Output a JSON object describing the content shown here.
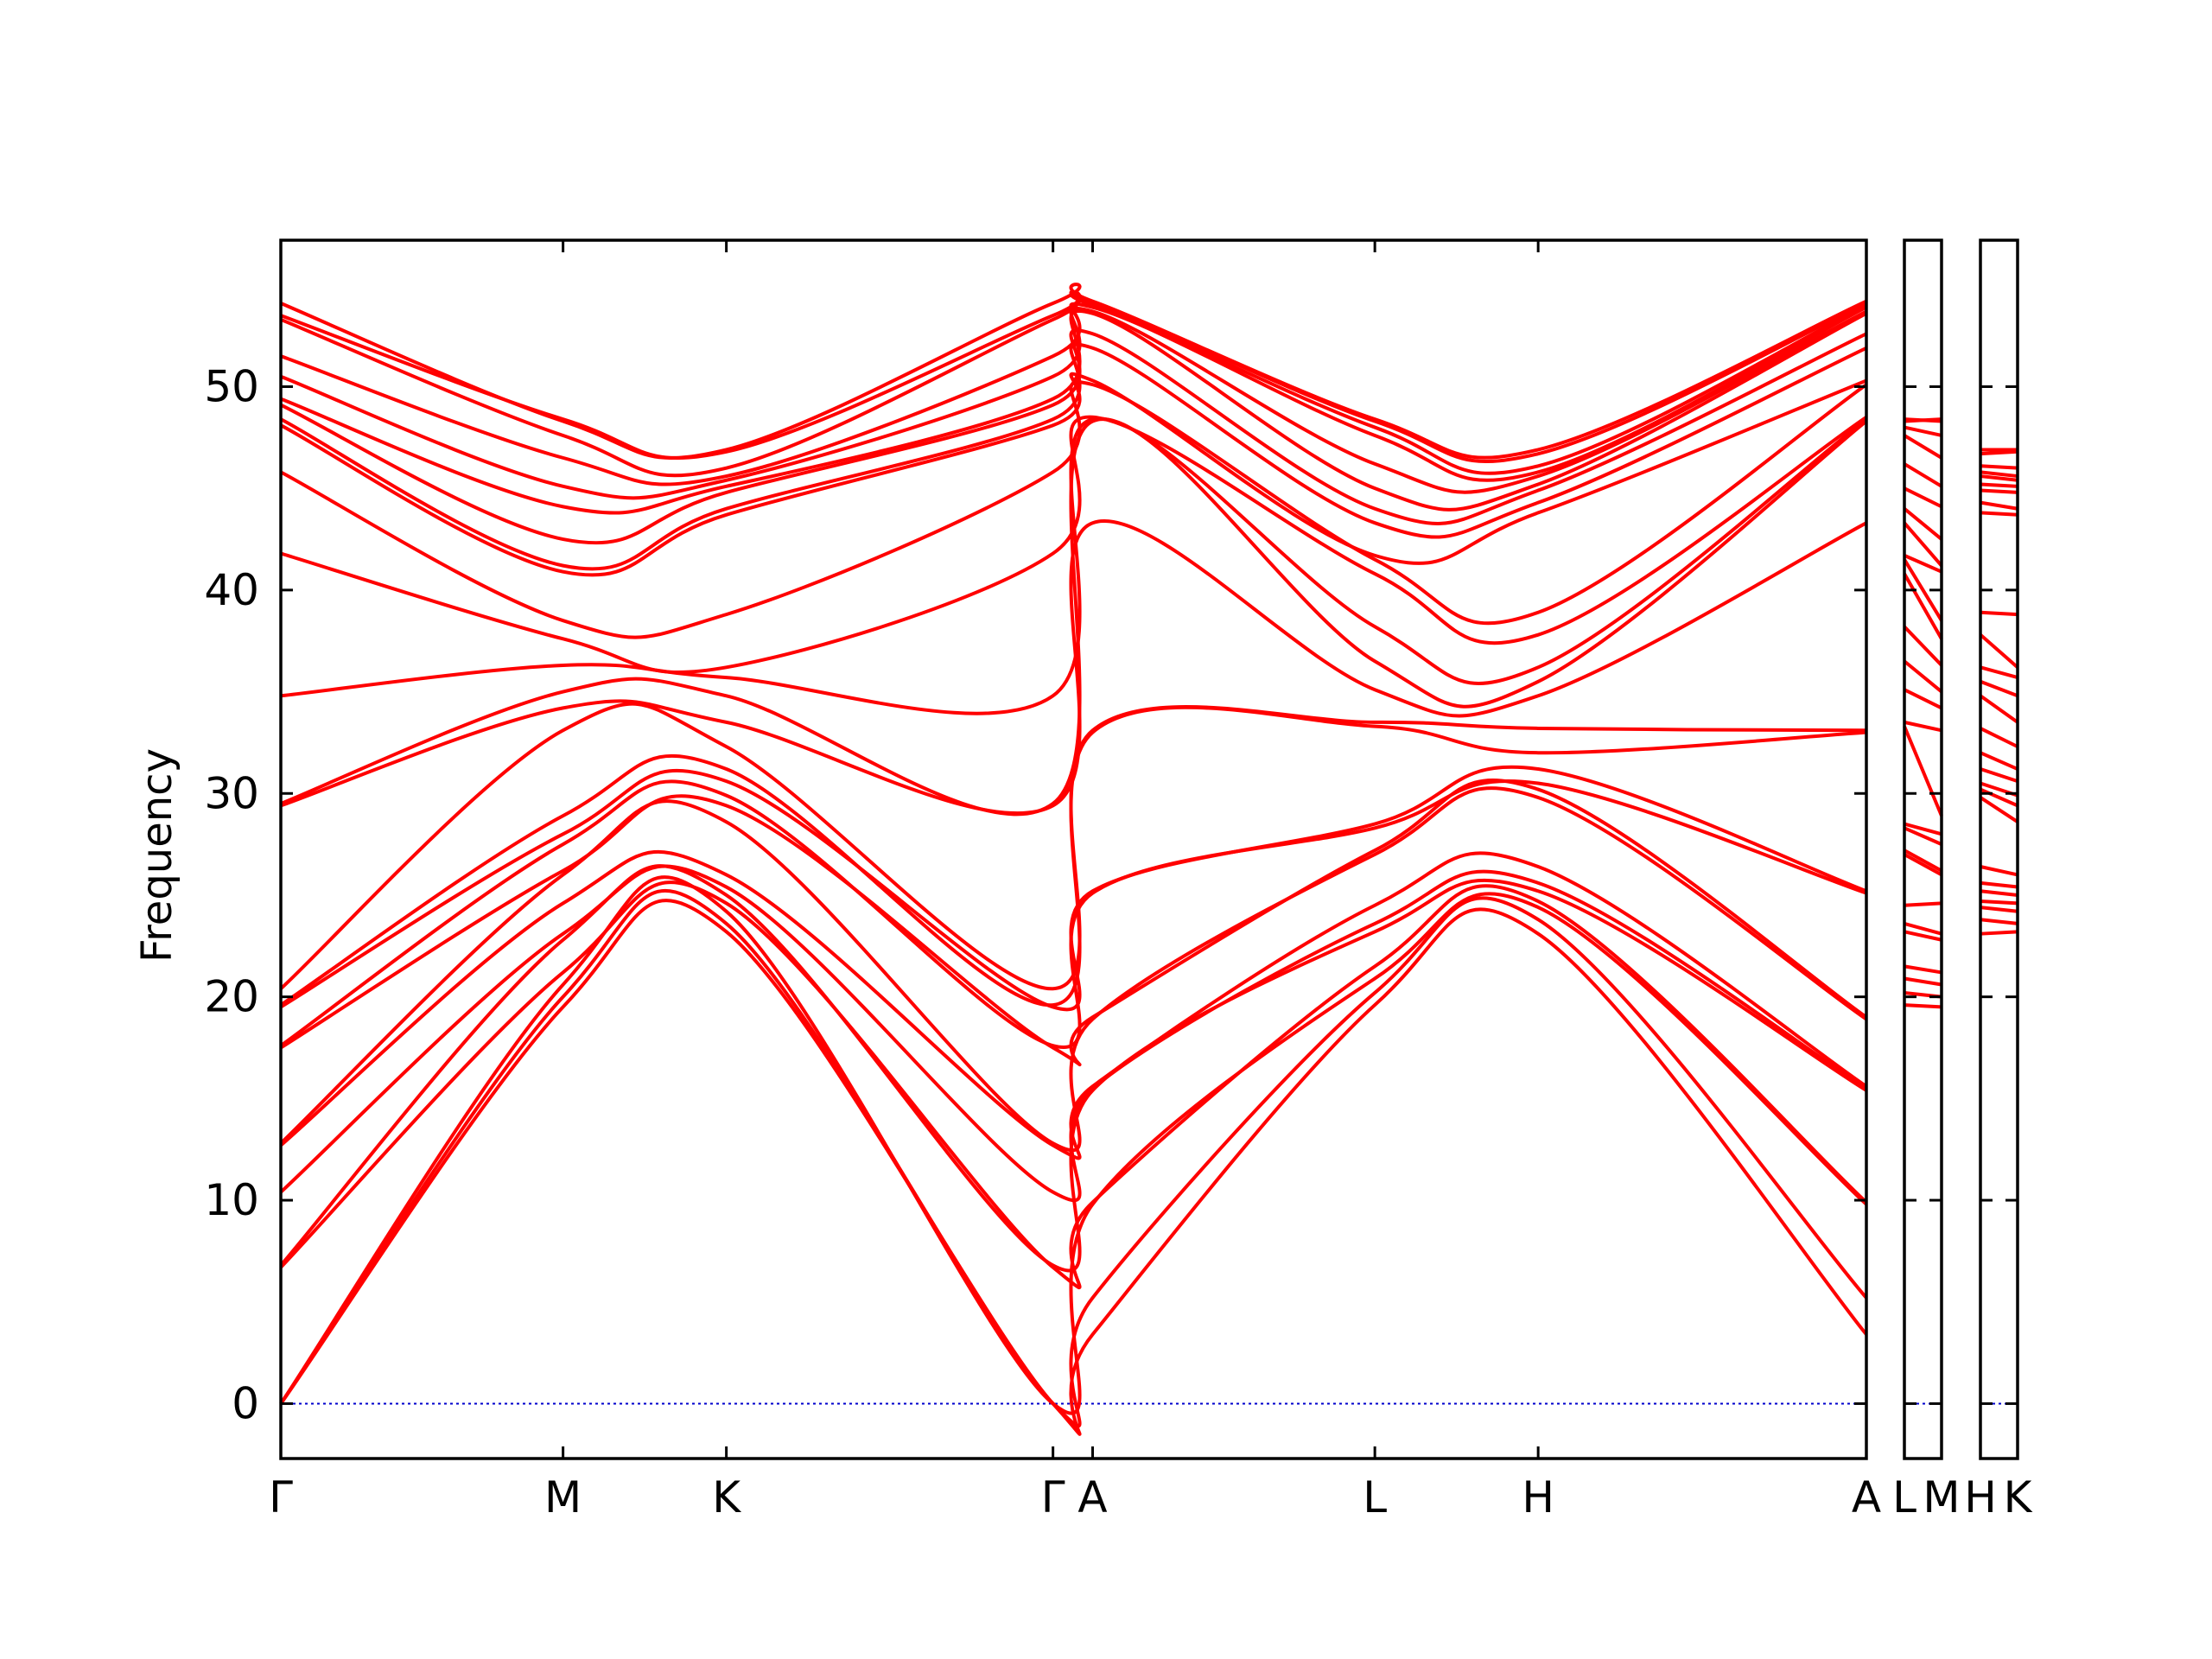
{
  "chart_data": {
    "type": "line",
    "title": "",
    "xlabel": "",
    "ylabel": "Frequency",
    "ylim": [
      -2.7,
      57.2
    ],
    "yticks": [
      0,
      10,
      20,
      30,
      40,
      50
    ],
    "grid": false,
    "line_color": "#ff0000",
    "zero_line_color": "#0000cc",
    "path_labels": [
      {
        "panel": 0,
        "x": 0.0,
        "label": "Γ"
      },
      {
        "panel": 0,
        "x": 0.178,
        "label": "M"
      },
      {
        "panel": 0,
        "x": 0.281,
        "label": "K"
      },
      {
        "panel": 0,
        "x": 0.487,
        "label": "Γ"
      },
      {
        "panel": 0,
        "x": 0.512,
        "label": "A"
      },
      {
        "panel": 0,
        "x": 0.69,
        "label": "L"
      },
      {
        "panel": 0,
        "x": 0.793,
        "label": "H"
      },
      {
        "panel": 0,
        "x": 1.0,
        "label": "A"
      },
      {
        "panel": 1,
        "x": 0.0,
        "label": "L"
      },
      {
        "panel": 1,
        "x": 1.0,
        "label": "M"
      },
      {
        "panel": 2,
        "x": 0.0,
        "label": "H"
      },
      {
        "panel": 2,
        "x": 1.0,
        "label": "K"
      }
    ],
    "panels": [
      {
        "x": [
          0.0,
          0.178,
          0.281,
          0.487,
          0.512,
          0.69,
          0.793,
          1.0
        ],
        "series": [
          {
            "values": [
              0.0,
              19.5,
              23.2,
              0.0,
              3.4,
              19.6,
              23.1,
              3.4
            ]
          },
          {
            "values": [
              0.0,
              20.0,
              23.6,
              0.0,
              5.2,
              20.2,
              23.8,
              5.2
            ]
          },
          {
            "values": [
              0.0,
              20.6,
              24.2,
              0.0,
              9.8,
              20.9,
              24.4,
              9.8
            ]
          },
          {
            "values": [
              6.7,
              21.2,
              24.6,
              6.7,
              9.9,
              21.5,
              24.7,
              9.9
            ]
          },
          {
            "values": [
              6.8,
              22.8,
              25.0,
              6.8,
              15.4,
              23.2,
              25.2,
              15.4
            ]
          },
          {
            "values": [
              10.4,
              23.1,
              25.4,
              10.4,
              15.5,
              23.6,
              25.6,
              15.5
            ]
          },
          {
            "values": [
              12.7,
              24.6,
              26.0,
              12.7,
              15.6,
              24.5,
              26.4,
              15.6
            ]
          },
          {
            "values": [
              12.8,
              26.0,
              28.6,
              12.8,
              18.9,
              27.0,
              29.8,
              18.9
            ]
          },
          {
            "values": [
              17.5,
              26.2,
              29.4,
              17.5,
              19.0,
              27.2,
              30.2,
              19.0
            ]
          },
          {
            "values": [
              17.6,
              27.5,
              29.9,
              17.6,
              25.1,
              28.3,
              30.5,
              25.1
            ]
          },
          {
            "values": [
              19.5,
              28.0,
              30.6,
              19.5,
              25.2,
              28.5,
              31.2,
              25.2
            ]
          },
          {
            "values": [
              19.6,
              28.9,
              31.2,
              19.6,
              33.0,
              33.3,
              32.0,
              33.0
            ]
          },
          {
            "values": [
              20.4,
              33.1,
              32.3,
              20.4,
              33.1,
              33.5,
              33.2,
              33.1
            ]
          },
          {
            "values": [
              29.4,
              34.2,
              33.5,
              29.4,
              43.3,
              35.1,
              34.8,
              43.3
            ]
          },
          {
            "values": [
              29.5,
              35.0,
              34.8,
              29.5,
              48.3,
              36.5,
              35.5,
              48.3
            ]
          },
          {
            "values": [
              34.8,
              36.3,
              35.7,
              34.8,
              48.4,
              38.2,
              36.2,
              48.4
            ]
          },
          {
            "values": [
              41.8,
              37.6,
              36.2,
              41.8,
              48.5,
              40.8,
              37.8,
              48.5
            ]
          },
          {
            "values": [
              45.8,
              38.5,
              38.8,
              45.8,
              50.1,
              41.5,
              38.9,
              50.1
            ]
          },
          {
            "values": [
              48.1,
              40.9,
              43.7,
              48.1,
              50.3,
              41.7,
              43.8,
              50.3
            ]
          },
          {
            "values": [
              48.4,
              41.2,
              44.0,
              48.4,
              51.9,
              43.3,
              44.3,
              51.9
            ]
          },
          {
            "values": [
              49.1,
              42.5,
              44.8,
              49.1,
              52.6,
              44.0,
              44.9,
              52.6
            ]
          },
          {
            "values": [
              49.4,
              44.1,
              45.1,
              49.4,
              53.6,
              45.0,
              45.2,
              53.6
            ]
          },
          {
            "values": [
              50.5,
              45.1,
              45.4,
              50.5,
              53.7,
              46.2,
              45.6,
              53.7
            ]
          },
          {
            "values": [
              51.5,
              46.5,
              45.6,
              51.5,
              53.9,
              47.6,
              45.8,
              53.9
            ]
          },
          {
            "values": [
              53.3,
              47.6,
              46.0,
              53.3,
              54.0,
              48.0,
              46.1,
              54.0
            ]
          },
          {
            "values": [
              53.5,
              48.4,
              46.8,
              53.5,
              54.1,
              48.3,
              46.7,
              54.1
            ]
          },
          {
            "values": [
              54.1,
              48.3,
              46.9,
              54.1,
              54.2,
              48.4,
              46.9,
              54.2
            ]
          }
        ]
      },
      {
        "x": [
          0.0,
          1.0
        ],
        "series": [
          {
            "values": [
              19.6,
              19.5
            ]
          },
          {
            "values": [
              20.2,
              20.0
            ]
          },
          {
            "values": [
              20.9,
              20.6
            ]
          },
          {
            "values": [
              21.5,
              21.2
            ]
          },
          {
            "values": [
              23.2,
              22.8
            ]
          },
          {
            "values": [
              23.6,
              23.1
            ]
          },
          {
            "values": [
              24.5,
              24.6
            ]
          },
          {
            "values": [
              27.0,
              26.0
            ]
          },
          {
            "values": [
              27.2,
              26.2
            ]
          },
          {
            "values": [
              28.3,
              27.5
            ]
          },
          {
            "values": [
              28.5,
              28.0
            ]
          },
          {
            "values": [
              33.3,
              28.9
            ]
          },
          {
            "values": [
              33.5,
              33.1
            ]
          },
          {
            "values": [
              35.1,
              34.2
            ]
          },
          {
            "values": [
              36.5,
              35.0
            ]
          },
          {
            "values": [
              38.2,
              36.3
            ]
          },
          {
            "values": [
              40.8,
              37.6
            ]
          },
          {
            "values": [
              41.5,
              38.5
            ]
          },
          {
            "values": [
              41.7,
              40.9
            ]
          },
          {
            "values": [
              43.3,
              41.2
            ]
          },
          {
            "values": [
              44.0,
              42.5
            ]
          },
          {
            "values": [
              45.0,
              44.1
            ]
          },
          {
            "values": [
              46.2,
              45.1
            ]
          },
          {
            "values": [
              47.6,
              46.5
            ]
          },
          {
            "values": [
              48.0,
              47.6
            ]
          },
          {
            "values": [
              48.3,
              48.4
            ]
          },
          {
            "values": [
              48.4,
              48.3
            ]
          }
        ]
      },
      {
        "x": [
          0.0,
          1.0
        ],
        "series": [
          {
            "values": [
              23.1,
              23.2
            ]
          },
          {
            "values": [
              23.8,
              23.6
            ]
          },
          {
            "values": [
              24.4,
              24.2
            ]
          },
          {
            "values": [
              24.7,
              24.6
            ]
          },
          {
            "values": [
              25.2,
              25.0
            ]
          },
          {
            "values": [
              25.6,
              25.4
            ]
          },
          {
            "values": [
              26.4,
              26.0
            ]
          },
          {
            "values": [
              29.8,
              28.6
            ]
          },
          {
            "values": [
              30.2,
              29.4
            ]
          },
          {
            "values": [
              30.5,
              29.9
            ]
          },
          {
            "values": [
              31.2,
              30.6
            ]
          },
          {
            "values": [
              32.0,
              31.2
            ]
          },
          {
            "values": [
              33.2,
              32.3
            ]
          },
          {
            "values": [
              34.8,
              33.5
            ]
          },
          {
            "values": [
              35.5,
              34.8
            ]
          },
          {
            "values": [
              36.2,
              35.7
            ]
          },
          {
            "values": [
              37.8,
              36.2
            ]
          },
          {
            "values": [
              38.9,
              38.8
            ]
          },
          {
            "values": [
              43.8,
              43.7
            ]
          },
          {
            "values": [
              44.3,
              44.0
            ]
          },
          {
            "values": [
              44.9,
              44.8
            ]
          },
          {
            "values": [
              45.2,
              45.1
            ]
          },
          {
            "values": [
              45.6,
              45.4
            ]
          },
          {
            "values": [
              45.8,
              45.6
            ]
          },
          {
            "values": [
              46.1,
              46.0
            ]
          },
          {
            "values": [
              46.7,
              46.8
            ]
          },
          {
            "values": [
              46.9,
              46.9
            ]
          }
        ]
      }
    ]
  }
}
